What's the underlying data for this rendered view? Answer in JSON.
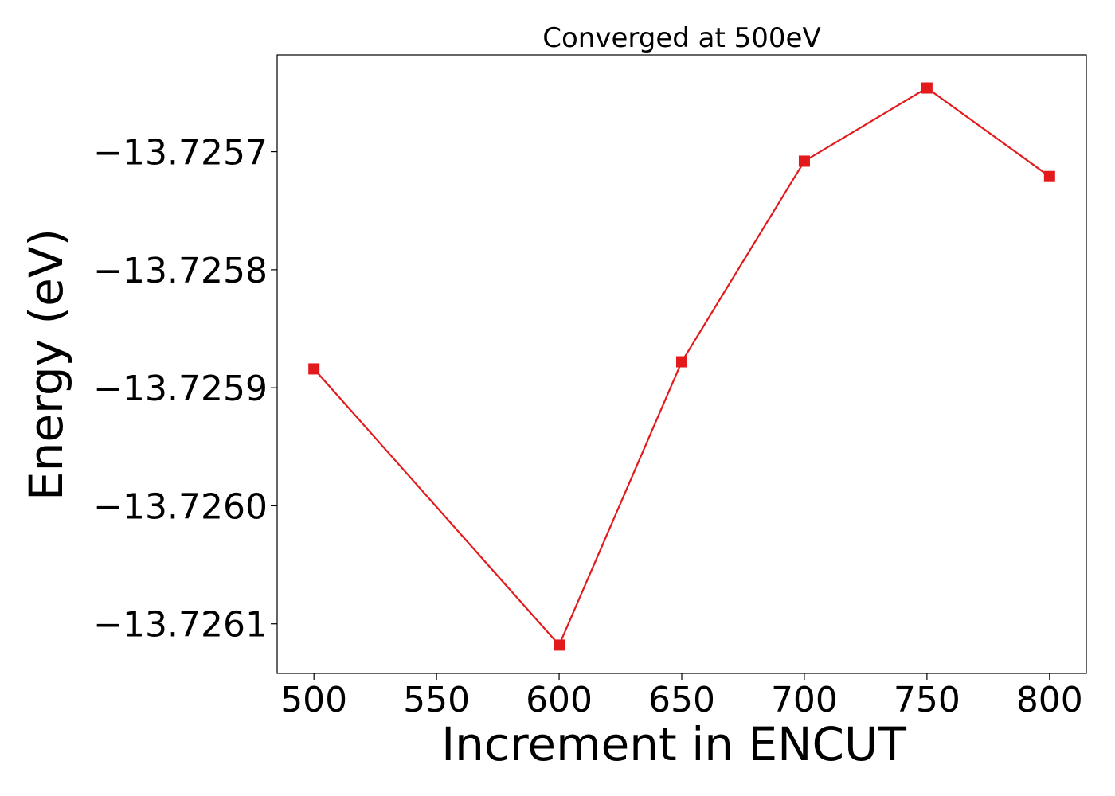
{
  "chart_data": {
    "type": "line",
    "title": "Converged at 500eV",
    "xlabel": "Increment in ENCUT",
    "ylabel": "Energy (eV)",
    "x": [
      500,
      600,
      650,
      700,
      750,
      800
    ],
    "series": [
      {
        "values": [
          -13.725884,
          -13.726118,
          -13.725878,
          -13.725708,
          -13.725646,
          -13.725721
        ],
        "color": "#e31a1c",
        "marker": "square"
      }
    ],
    "xticks": [
      500,
      550,
      600,
      650,
      700,
      750,
      800
    ],
    "xtick_labels": [
      "500",
      "550",
      "600",
      "650",
      "700",
      "750",
      "800"
    ],
    "yticks": [
      -13.7261,
      -13.726,
      -13.7259,
      -13.7258,
      -13.7257
    ],
    "ytick_labels": [
      "−13.7261",
      "−13.7260",
      "−13.7259",
      "−13.7258",
      "−13.7257"
    ],
    "xlim": [
      485,
      815
    ],
    "ylim": [
      -13.726142,
      -13.725618
    ],
    "grid": false,
    "legend": "none"
  }
}
